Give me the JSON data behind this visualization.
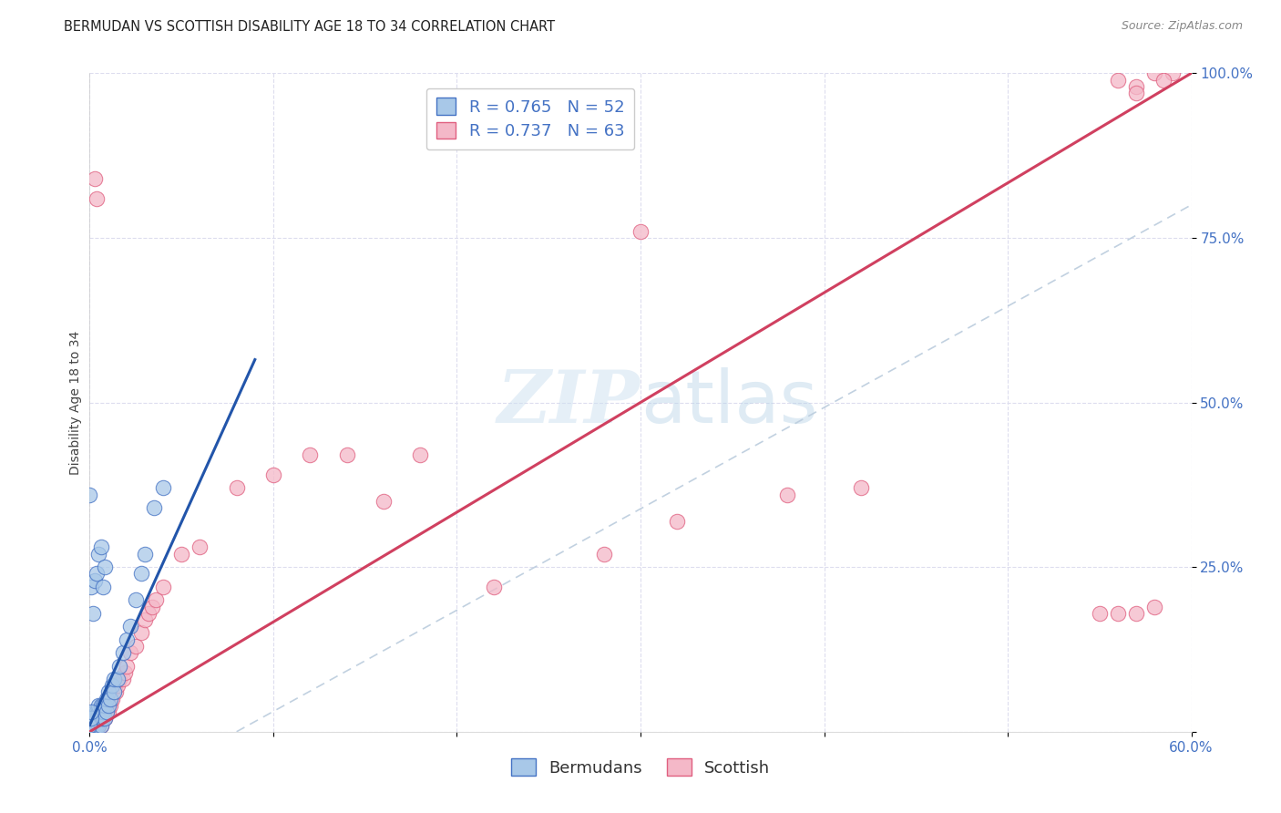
{
  "title": "BERMUDAN VS SCOTTISH DISABILITY AGE 18 TO 34 CORRELATION CHART",
  "source": "Source: ZipAtlas.com",
  "ylabel": "Disability Age 18 to 34",
  "xlim": [
    0.0,
    0.6
  ],
  "ylim": [
    0.0,
    1.0
  ],
  "R_bermudan": 0.765,
  "N_bermudan": 52,
  "R_scottish": 0.737,
  "N_scottish": 63,
  "legend_labels": [
    "Bermudans",
    "Scottish"
  ],
  "blue_scatter_color": "#a8c8e8",
  "blue_edge_color": "#4472c4",
  "pink_scatter_color": "#f4b8c8",
  "pink_edge_color": "#e06080",
  "blue_line_color": "#2255aa",
  "pink_line_color": "#d04060",
  "dashed_color": "#bbccdd",
  "tick_color": "#4472c4",
  "title_color": "#222222",
  "watermark_color": "#cce0f0",
  "berm_x": [
    0.001,
    0.002,
    0.002,
    0.003,
    0.003,
    0.003,
    0.004,
    0.004,
    0.004,
    0.005,
    0.005,
    0.005,
    0.005,
    0.006,
    0.006,
    0.006,
    0.006,
    0.007,
    0.007,
    0.007,
    0.008,
    0.008,
    0.009,
    0.009,
    0.01,
    0.01,
    0.011,
    0.012,
    0.013,
    0.013,
    0.015,
    0.016,
    0.018,
    0.02,
    0.022,
    0.025,
    0.028,
    0.03,
    0.035,
    0.04,
    0.001,
    0.002,
    0.003,
    0.004,
    0.005,
    0.006,
    0.007,
    0.008,
    0.0,
    0.0,
    0.001,
    0.001
  ],
  "berm_y": [
    0.01,
    0.01,
    0.02,
    0.01,
    0.02,
    0.03,
    0.01,
    0.02,
    0.03,
    0.01,
    0.02,
    0.03,
    0.04,
    0.01,
    0.02,
    0.03,
    0.04,
    0.02,
    0.03,
    0.04,
    0.02,
    0.04,
    0.03,
    0.05,
    0.04,
    0.06,
    0.05,
    0.07,
    0.06,
    0.08,
    0.08,
    0.1,
    0.12,
    0.14,
    0.16,
    0.2,
    0.24,
    0.27,
    0.34,
    0.37,
    0.22,
    0.18,
    0.23,
    0.24,
    0.27,
    0.28,
    0.22,
    0.25,
    0.36,
    0.01,
    0.02,
    0.03
  ],
  "berm_line_x": [
    0.0,
    0.09
  ],
  "berm_line_y": [
    0.01,
    0.565
  ],
  "scot_x": [
    0.001,
    0.001,
    0.002,
    0.002,
    0.003,
    0.003,
    0.004,
    0.004,
    0.005,
    0.005,
    0.005,
    0.006,
    0.006,
    0.007,
    0.007,
    0.008,
    0.008,
    0.009,
    0.01,
    0.01,
    0.011,
    0.012,
    0.013,
    0.014,
    0.015,
    0.016,
    0.018,
    0.019,
    0.02,
    0.022,
    0.025,
    0.028,
    0.03,
    0.032,
    0.034,
    0.036,
    0.04,
    0.05,
    0.06,
    0.08,
    0.1,
    0.12,
    0.14,
    0.18,
    0.22,
    0.28,
    0.32,
    0.38,
    0.42,
    0.55,
    0.56,
    0.57,
    0.58,
    0.003,
    0.004,
    0.3,
    0.58,
    0.59,
    0.585,
    0.57,
    0.16,
    0.56,
    0.57
  ],
  "scot_y": [
    0.01,
    0.02,
    0.01,
    0.02,
    0.01,
    0.02,
    0.01,
    0.02,
    0.01,
    0.02,
    0.03,
    0.01,
    0.03,
    0.02,
    0.04,
    0.02,
    0.04,
    0.03,
    0.03,
    0.05,
    0.04,
    0.05,
    0.06,
    0.06,
    0.07,
    0.08,
    0.08,
    0.09,
    0.1,
    0.12,
    0.13,
    0.15,
    0.17,
    0.18,
    0.19,
    0.2,
    0.22,
    0.27,
    0.28,
    0.37,
    0.39,
    0.42,
    0.42,
    0.42,
    0.22,
    0.27,
    0.32,
    0.36,
    0.37,
    0.18,
    0.18,
    0.18,
    0.19,
    0.84,
    0.81,
    0.76,
    1.0,
    1.0,
    0.99,
    0.98,
    0.35,
    0.99,
    0.97
  ],
  "scot_line_x": [
    0.0,
    0.6
  ],
  "scot_line_y": [
    0.0,
    1.0
  ],
  "dash_line_x": [
    0.08,
    0.6
  ],
  "dash_line_y": [
    0.0,
    0.8
  ]
}
